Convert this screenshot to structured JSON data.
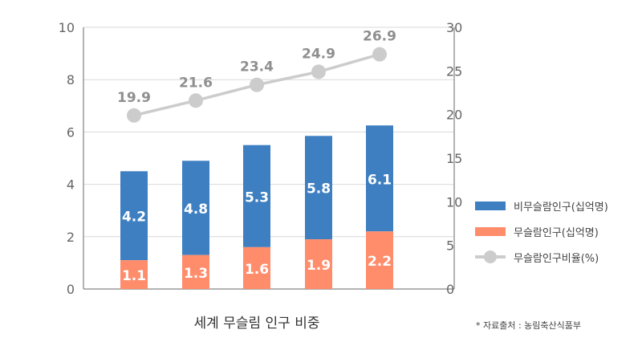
{
  "chart_data": {
    "type": "bar",
    "stacked": true,
    "categories": [
      "",
      "",
      "",
      "",
      ""
    ],
    "series": [
      {
        "name": "비무슬람인구(십억명)",
        "kind": "bar",
        "axis": "left",
        "color": "#3d7fc1",
        "values": [
          4.2,
          4.8,
          5.3,
          5.8,
          6.1
        ],
        "bar_totals": [
          4.5,
          4.9,
          5.5,
          5.85,
          6.25
        ]
      },
      {
        "name": "무슬람인구(십억명)",
        "kind": "bar",
        "axis": "left",
        "color": "#ff8c6b",
        "values": [
          1.1,
          1.3,
          1.6,
          1.9,
          2.2
        ]
      },
      {
        "name": "무슬람인구비율(%)",
        "kind": "line",
        "axis": "right",
        "color": "#cccccc",
        "values": [
          19.9,
          21.6,
          23.4,
          24.9,
          26.9
        ]
      }
    ],
    "xlabel": "세계 무슬림 인구 비중",
    "left_axis": {
      "ylim": [
        0,
        10
      ],
      "ticks": [
        0,
        2,
        4,
        6,
        8,
        10
      ]
    },
    "right_axis": {
      "ylim": [
        0,
        30
      ],
      "ticks": [
        0,
        5,
        10,
        15,
        20,
        25,
        30
      ]
    },
    "grid": true,
    "legend_position": "right"
  },
  "source_note": "* 자료출처 : 농림축산식품부"
}
